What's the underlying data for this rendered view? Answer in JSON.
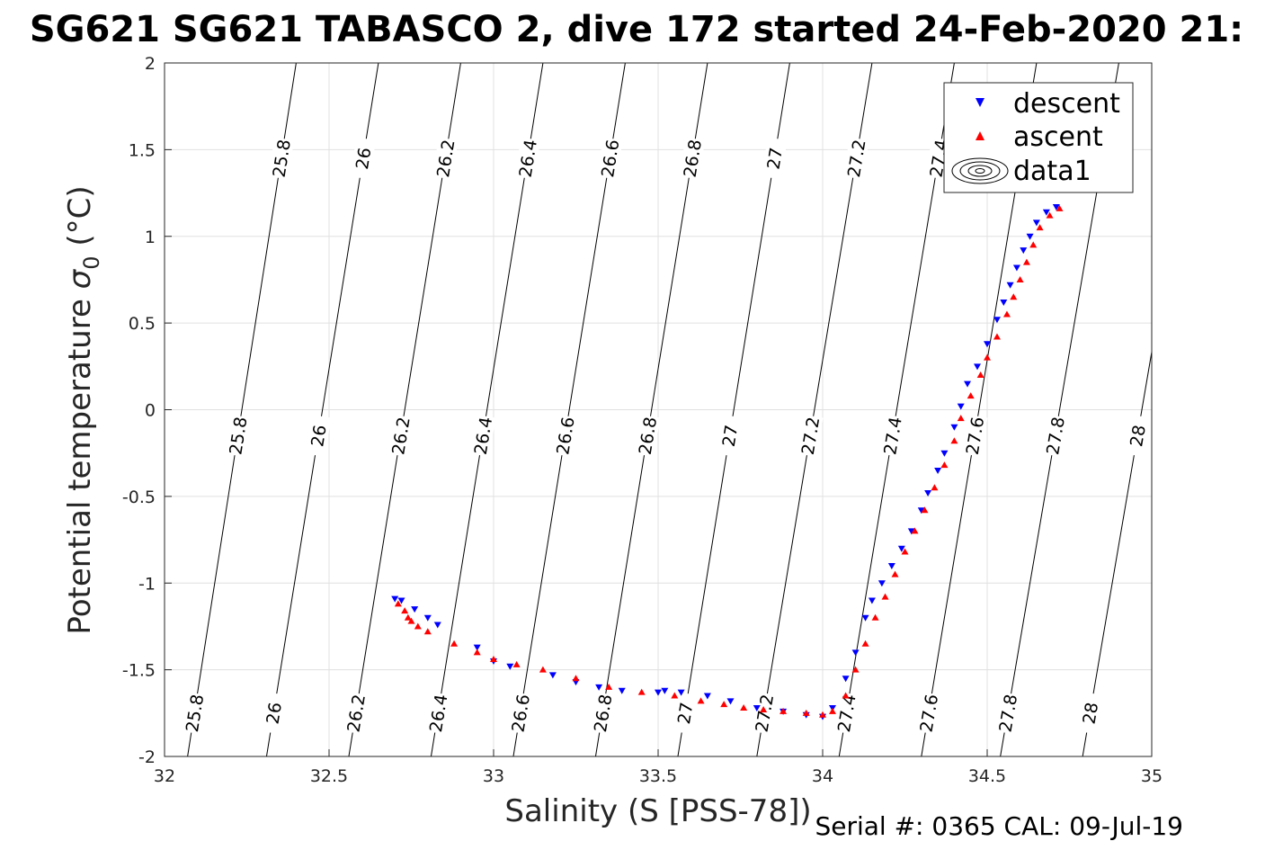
{
  "chart_data": {
    "type": "scatter",
    "title": "SG621 SG621 TABASCO 2, dive 172 started 24-Feb-2020 21:",
    "xlabel": "Salinity (S [PSS-78])",
    "ylabel_prefix": "Potential temperature ",
    "ylabel_symbol": "σ",
    "ylabel_sub": "0",
    "ylabel_suffix": " (°C)",
    "xlim": [
      32,
      35
    ],
    "ylim": [
      -2,
      2
    ],
    "xticks": [
      32,
      32.5,
      33,
      33.5,
      34,
      34.5,
      35
    ],
    "xtick_labels": [
      "32",
      "32.5",
      "33",
      "33.5",
      "34",
      "34.5",
      "35"
    ],
    "yticks": [
      -2,
      -1.5,
      -1,
      -0.5,
      0,
      0.5,
      1,
      1.5,
      2
    ],
    "ytick_labels": [
      "-2",
      "-1.5",
      "-1",
      "-0.5",
      "0",
      "0.5",
      "1",
      "1.5",
      "2"
    ],
    "grid": true,
    "legend_position": "top-right",
    "legend": [
      {
        "label": "descent",
        "marker": "triangle-down",
        "color": "#0000ff"
      },
      {
        "label": "ascent",
        "marker": "triangle-up",
        "color": "#ff0000"
      },
      {
        "label": "data1",
        "marker": "contour",
        "color": "#000000"
      }
    ],
    "density_contours": [
      {
        "level": "25.8",
        "label": "25.8",
        "s_at_tmin": 32.07,
        "s_at_tmax": 32.4
      },
      {
        "level": "26",
        "label": "26",
        "s_at_tmin": 32.31,
        "s_at_tmax": 32.65
      },
      {
        "level": "26.2",
        "label": "26.2",
        "s_at_tmin": 32.56,
        "s_at_tmax": 32.9
      },
      {
        "level": "26.4",
        "label": "26.4",
        "s_at_tmin": 32.81,
        "s_at_tmax": 33.15
      },
      {
        "level": "26.6",
        "label": "26.6",
        "s_at_tmin": 33.06,
        "s_at_tmax": 33.4
      },
      {
        "level": "26.8",
        "label": "26.8",
        "s_at_tmin": 33.31,
        "s_at_tmax": 33.65
      },
      {
        "level": "27",
        "label": "27",
        "s_at_tmin": 33.56,
        "s_at_tmax": 33.9
      },
      {
        "level": "27.2",
        "label": "27.2",
        "s_at_tmin": 33.8,
        "s_at_tmax": 34.15
      },
      {
        "level": "27.4",
        "label": "27.4",
        "s_at_tmin": 34.05,
        "s_at_tmax": 34.4
      },
      {
        "level": "27.6",
        "label": "27.6",
        "s_at_tmin": 34.3,
        "s_at_tmax": 34.65
      },
      {
        "level": "27.8",
        "label": "27.8",
        "s_at_tmin": 34.54,
        "s_at_tmax": 34.9
      },
      {
        "level": "28",
        "label": "28",
        "s_at_tmin": 34.79,
        "s_at_tmax": 35.15
      }
    ],
    "contour_label_temps": [
      -1.75,
      -0.15,
      1.45
    ],
    "series": [
      {
        "name": "descent",
        "marker": "triangle-down",
        "color": "#0000ff",
        "points": [
          [
            32.7,
            -1.09
          ],
          [
            32.72,
            -1.1
          ],
          [
            32.76,
            -1.15
          ],
          [
            32.8,
            -1.2
          ],
          [
            32.83,
            -1.24
          ],
          [
            32.95,
            -1.37
          ],
          [
            33.0,
            -1.45
          ],
          [
            33.05,
            -1.48
          ],
          [
            33.18,
            -1.53
          ],
          [
            33.25,
            -1.57
          ],
          [
            33.32,
            -1.6
          ],
          [
            33.39,
            -1.62
          ],
          [
            33.5,
            -1.63
          ],
          [
            33.52,
            -1.62
          ],
          [
            33.57,
            -1.63
          ],
          [
            33.65,
            -1.65
          ],
          [
            33.72,
            -1.68
          ],
          [
            33.8,
            -1.72
          ],
          [
            33.88,
            -1.74
          ],
          [
            33.95,
            -1.76
          ],
          [
            34.0,
            -1.77
          ],
          [
            34.03,
            -1.72
          ],
          [
            34.07,
            -1.55
          ],
          [
            34.1,
            -1.4
          ],
          [
            34.13,
            -1.2
          ],
          [
            34.15,
            -1.1
          ],
          [
            34.18,
            -1.0
          ],
          [
            34.21,
            -0.9
          ],
          [
            34.24,
            -0.8
          ],
          [
            34.27,
            -0.7
          ],
          [
            34.3,
            -0.58
          ],
          [
            34.32,
            -0.48
          ],
          [
            34.35,
            -0.35
          ],
          [
            34.37,
            -0.25
          ],
          [
            34.4,
            -0.1
          ],
          [
            34.42,
            0.02
          ],
          [
            34.44,
            0.15
          ],
          [
            34.47,
            0.25
          ],
          [
            34.5,
            0.38
          ],
          [
            34.53,
            0.52
          ],
          [
            34.55,
            0.62
          ],
          [
            34.57,
            0.72
          ],
          [
            34.59,
            0.82
          ],
          [
            34.61,
            0.92
          ],
          [
            34.63,
            1.0
          ],
          [
            34.65,
            1.08
          ],
          [
            34.68,
            1.14
          ],
          [
            34.71,
            1.17
          ]
        ]
      },
      {
        "name": "ascent",
        "marker": "triangle-up",
        "color": "#ff0000",
        "points": [
          [
            32.71,
            -1.12
          ],
          [
            32.73,
            -1.16
          ],
          [
            32.75,
            -1.22
          ],
          [
            32.77,
            -1.25
          ],
          [
            32.74,
            -1.2
          ],
          [
            32.8,
            -1.28
          ],
          [
            32.88,
            -1.35
          ],
          [
            32.95,
            -1.4
          ],
          [
            33.0,
            -1.44
          ],
          [
            33.07,
            -1.47
          ],
          [
            33.15,
            -1.5
          ],
          [
            33.25,
            -1.55
          ],
          [
            33.35,
            -1.6
          ],
          [
            33.45,
            -1.63
          ],
          [
            33.55,
            -1.65
          ],
          [
            33.63,
            -1.68
          ],
          [
            33.7,
            -1.7
          ],
          [
            33.76,
            -1.72
          ],
          [
            33.82,
            -1.73
          ],
          [
            33.88,
            -1.74
          ],
          [
            33.95,
            -1.75
          ],
          [
            34.0,
            -1.76
          ],
          [
            34.03,
            -1.74
          ],
          [
            34.07,
            -1.65
          ],
          [
            34.1,
            -1.5
          ],
          [
            34.13,
            -1.35
          ],
          [
            34.16,
            -1.2
          ],
          [
            34.19,
            -1.08
          ],
          [
            34.22,
            -0.95
          ],
          [
            34.25,
            -0.82
          ],
          [
            34.28,
            -0.7
          ],
          [
            34.31,
            -0.58
          ],
          [
            34.34,
            -0.45
          ],
          [
            34.37,
            -0.32
          ],
          [
            34.4,
            -0.18
          ],
          [
            34.42,
            -0.05
          ],
          [
            34.45,
            0.08
          ],
          [
            34.48,
            0.2
          ],
          [
            34.5,
            0.3
          ],
          [
            34.53,
            0.42
          ],
          [
            34.56,
            0.55
          ],
          [
            34.58,
            0.65
          ],
          [
            34.6,
            0.75
          ],
          [
            34.62,
            0.85
          ],
          [
            34.64,
            0.95
          ],
          [
            34.66,
            1.05
          ],
          [
            34.69,
            1.12
          ],
          [
            34.72,
            1.16
          ]
        ]
      }
    ]
  },
  "footer": {
    "serial": "Serial #: 0365  CAL: 09-Jul-19"
  }
}
